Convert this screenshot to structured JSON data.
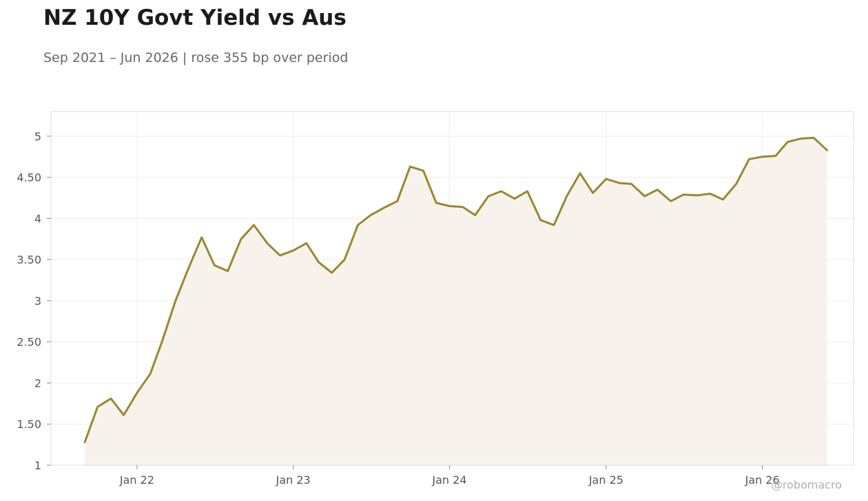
{
  "header": {
    "title": "NZ 10Y Govt Yield vs Aus",
    "subtitle": "Sep 2021 – Jun 2026 | rose 355 bp over period"
  },
  "watermark": "@robomacro",
  "colors": {
    "line": "#9b8630",
    "fill": "#f7f3ec",
    "grid": "#eeeeee",
    "frame": "#dddddd",
    "tick_text": "#555560"
  },
  "chart_data": {
    "type": "area",
    "title": "NZ 10Y Govt Yield vs Aus",
    "subtitle": "Sep 2021 – Jun 2026 | rose 355 bp over period",
    "xlabel": "",
    "ylabel": "",
    "xlim": [
      "2021-06-14",
      "2026-08-02"
    ],
    "ylim": [
      1,
      5.3
    ],
    "grid": true,
    "legend": "none",
    "x_ticks": [
      {
        "date": "2022-01-01",
        "label": "Jan 22"
      },
      {
        "date": "2023-01-01",
        "label": "Jan 23"
      },
      {
        "date": "2024-01-01",
        "label": "Jan 24"
      },
      {
        "date": "2025-01-01",
        "label": "Jan 25"
      },
      {
        "date": "2026-01-01",
        "label": "Jan 26"
      }
    ],
    "y_ticks": [
      {
        "value": 1,
        "label": "1"
      },
      {
        "value": 1.5,
        "label": "1.50"
      },
      {
        "value": 2,
        "label": "2"
      },
      {
        "value": 2.5,
        "label": "2.50"
      },
      {
        "value": 3,
        "label": "3"
      },
      {
        "value": 3.5,
        "label": "3.50"
      },
      {
        "value": 4,
        "label": "4"
      },
      {
        "value": 4.5,
        "label": "4.50"
      },
      {
        "value": 5,
        "label": "5"
      }
    ],
    "series": [
      {
        "x": [
          "2021-09-01",
          "2021-10-01",
          "2021-11-01",
          "2021-12-01",
          "2022-01-01",
          "2022-02-01",
          "2022-03-01",
          "2022-04-01",
          "2022-05-01",
          "2022-06-01",
          "2022-07-01",
          "2022-08-01",
          "2022-09-01",
          "2022-10-01",
          "2022-11-01",
          "2022-12-01",
          "2023-01-01",
          "2023-02-01",
          "2023-03-01",
          "2023-04-01",
          "2023-05-01",
          "2023-06-01",
          "2023-07-01",
          "2023-08-01",
          "2023-09-01",
          "2023-10-01",
          "2023-11-01",
          "2023-12-01",
          "2024-01-01",
          "2024-02-01",
          "2024-03-01",
          "2024-04-01",
          "2024-05-01",
          "2024-06-01",
          "2024-07-01",
          "2024-08-01",
          "2024-09-01",
          "2024-10-01",
          "2024-11-01",
          "2024-12-01",
          "2025-01-01",
          "2025-02-01",
          "2025-03-01",
          "2025-04-01",
          "2025-05-01",
          "2025-06-01",
          "2025-07-01",
          "2025-08-01",
          "2025-09-01",
          "2025-10-01",
          "2025-11-01",
          "2025-12-01",
          "2026-01-01",
          "2026-02-01",
          "2026-03-01",
          "2026-04-01",
          "2026-05-01",
          "2026-06-01"
        ],
        "values": [
          1.28,
          1.71,
          1.81,
          1.61,
          1.88,
          2.11,
          2.51,
          3.0,
          3.39,
          3.77,
          3.43,
          3.36,
          3.75,
          3.92,
          3.7,
          3.55,
          3.61,
          3.7,
          3.47,
          3.34,
          3.5,
          3.92,
          4.04,
          4.13,
          4.21,
          4.63,
          4.58,
          4.19,
          4.15,
          4.14,
          4.04,
          4.27,
          4.33,
          4.24,
          4.33,
          3.98,
          3.92,
          4.27,
          4.55,
          4.31,
          4.48,
          4.43,
          4.42,
          4.27,
          4.35,
          4.21,
          4.29,
          4.28,
          4.3,
          4.23,
          4.42,
          4.72,
          4.75,
          4.76,
          4.93,
          4.97,
          4.98,
          4.83
        ]
      }
    ]
  }
}
